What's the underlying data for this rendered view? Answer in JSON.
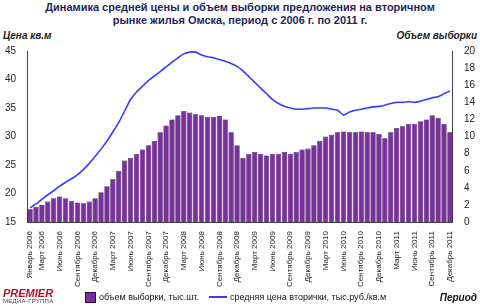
{
  "chart_data": {
    "type": "bar",
    "title": "Динамика  средней цены и объем выборки предложения на вторичном рынке жилья Омска, период с 2006 г. по 2011 г.",
    "y_label": "Цена кв.м",
    "y2_label": "Объем выборки",
    "x_label": "Период",
    "logo": {
      "text": "PREMIER",
      "subtext": "МЕДИА-ГРУППА"
    },
    "categories": [
      "Январь 2006",
      null,
      "Март 2006",
      null,
      null,
      "Июнь 2006",
      null,
      null,
      "Сентябрь 2006",
      null,
      null,
      "Декабрь 2006",
      null,
      null,
      "Март 2007",
      null,
      null,
      "Июнь 2007",
      null,
      null,
      "Сентябрь 2007",
      null,
      null,
      "Декабрь 2007",
      null,
      null,
      "Март 2008",
      null,
      null,
      "Июнь 2008",
      null,
      null,
      "Сентябрь 2008",
      null,
      null,
      "Декабрь 2008",
      null,
      null,
      "Март 2009",
      null,
      null,
      "Июнь 2009",
      null,
      null,
      "Сентябрь 2009",
      null,
      null,
      "Декабрь 2009",
      null,
      null,
      "Март 2010",
      null,
      null,
      "Июнь 2010",
      null,
      null,
      "Сентябрь 2010",
      null,
      null,
      "Декабрь 2010",
      null,
      null,
      "Март 2011",
      null,
      null,
      "Июнь 2011",
      null,
      null,
      "Сентябрь 2011",
      null,
      null,
      "Декабрь 2011"
    ],
    "series": [
      {
        "name": "объем выборки, тыс.шт.",
        "type": "bar",
        "color": "#7a2f9e",
        "axis": "y2",
        "values": [
          1.5,
          1.8,
          2.0,
          2.4,
          2.8,
          3.0,
          2.8,
          2.5,
          2.3,
          2.2,
          2.4,
          2.8,
          3.5,
          4.2,
          5.0,
          6.0,
          7.2,
          7.5,
          8.0,
          8.5,
          9.0,
          9.5,
          10.5,
          11.3,
          12.0,
          12.5,
          13.0,
          12.8,
          12.6,
          12.5,
          12.3,
          12.3,
          12.4,
          12.0,
          10.5,
          9.0,
          7.5,
          8.0,
          8.2,
          8.0,
          7.8,
          8.0,
          8.0,
          8.2,
          8.0,
          8.2,
          8.5,
          8.6,
          9.0,
          9.5,
          10.0,
          10.2,
          10.5,
          10.6,
          10.5,
          10.5,
          10.6,
          10.5,
          10.5,
          10.3,
          9.8,
          10.5,
          11.0,
          11.2,
          11.5,
          11.5,
          11.8,
          12.0,
          12.5,
          12.2,
          11.5,
          10.5
        ]
      },
      {
        "name": "средняя цена вторички, тыс.руб./кв.м",
        "type": "line",
        "color": "#3a3aff",
        "values": [
          17.5,
          18.2,
          19.0,
          19.8,
          20.5,
          21.3,
          22.0,
          22.6,
          23.3,
          24.2,
          25.3,
          26.5,
          27.8,
          29.2,
          30.8,
          32.5,
          34.5,
          36.5,
          37.8,
          38.8,
          39.8,
          40.6,
          41.4,
          42.2,
          43.0,
          43.8,
          44.5,
          44.8,
          44.8,
          44.3,
          44.0,
          43.8,
          43.5,
          43.2,
          42.8,
          42.3,
          41.5,
          40.5,
          39.5,
          38.5,
          37.5,
          36.5,
          35.8,
          35.3,
          35.0,
          34.8,
          34.8,
          34.9,
          35.0,
          35.0,
          35.0,
          34.8,
          34.6,
          33.8,
          34.3,
          34.6,
          34.8,
          35.0,
          35.2,
          35.3,
          35.5,
          35.8,
          36.0,
          36.0,
          36.1,
          36.0,
          36.2,
          36.5,
          36.8,
          37.0,
          37.5,
          38.0
        ]
      }
    ],
    "ylim": [
      15,
      45
    ],
    "yticks": [
      15,
      20,
      25,
      30,
      35,
      40,
      45
    ],
    "y2lim": [
      0,
      20
    ],
    "y2ticks": [
      0,
      2,
      4,
      6,
      8,
      10,
      12,
      14,
      16,
      18,
      20
    ],
    "grid": false,
    "legend": "bottom"
  }
}
